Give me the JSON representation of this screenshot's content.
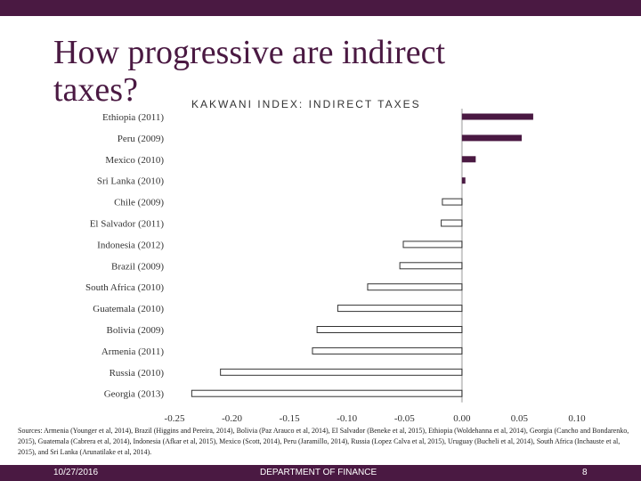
{
  "slide": {
    "title": "How progressive are indirect taxes?",
    "sources": "Sources: Armenia (Younger et al, 2014), Brazil (Higgins and Pereira, 2014), Bolivia (Paz Arauco et al, 2014), El Salvador (Beneke et al, 2015), Ethiopia (Woldehanna et al, 2014), Georgia (Cancho and Bondarenko, 2015), Guatemala (Cabrera et al, 2014), Indonesia (Afkar et al, 2015), Mexico (Scott, 2014), Peru (Jaramillo, 2014), Russia (Lopez Calva et al, 2015), Uruguay (Bucheli et al, 2014), South Africa (Inchauste et al, 2015), and Sri Lanka (Arunatilake et al, 2014).",
    "footer": {
      "date": "10/27/2016",
      "department": "DEPARTMENT OF FINANCE",
      "page": "8"
    },
    "colors": {
      "brand": "#4a1942",
      "positive_bar": "#4a1942",
      "negative_bar_fill": "#ffffff",
      "negative_bar_stroke": "#333333",
      "zero_line": "#c8c8c8"
    }
  },
  "chart_data": {
    "type": "bar",
    "orientation": "horizontal",
    "title": "KAKWANI INDEX: INDIRECT TAXES",
    "categories": [
      "Ethiopia (2011)",
      "Peru (2009)",
      "Mexico (2010)",
      "Sri Lanka (2010)",
      "Chile (2009)",
      "El Salvador (2011)",
      "Indonesia (2012)",
      "Brazil (2009)",
      "South Africa (2010)",
      "Guatemala (2010)",
      "Bolivia (2009)",
      "Armenia (2011)",
      "Russia (2010)",
      "Georgia (2013)"
    ],
    "values": [
      0.062,
      0.052,
      0.012,
      0.003,
      -0.017,
      -0.018,
      -0.051,
      -0.054,
      -0.082,
      -0.108,
      -0.126,
      -0.13,
      -0.21,
      -0.235
    ],
    "xlim": [
      -0.25,
      0.1
    ],
    "xticks": [
      "-0.25",
      "-0.20",
      "-0.15",
      "-0.10",
      "-0.05",
      "0.00",
      "0.05",
      "0.10"
    ],
    "xlabel": "",
    "ylabel": "",
    "grid": false,
    "legend": "none"
  }
}
